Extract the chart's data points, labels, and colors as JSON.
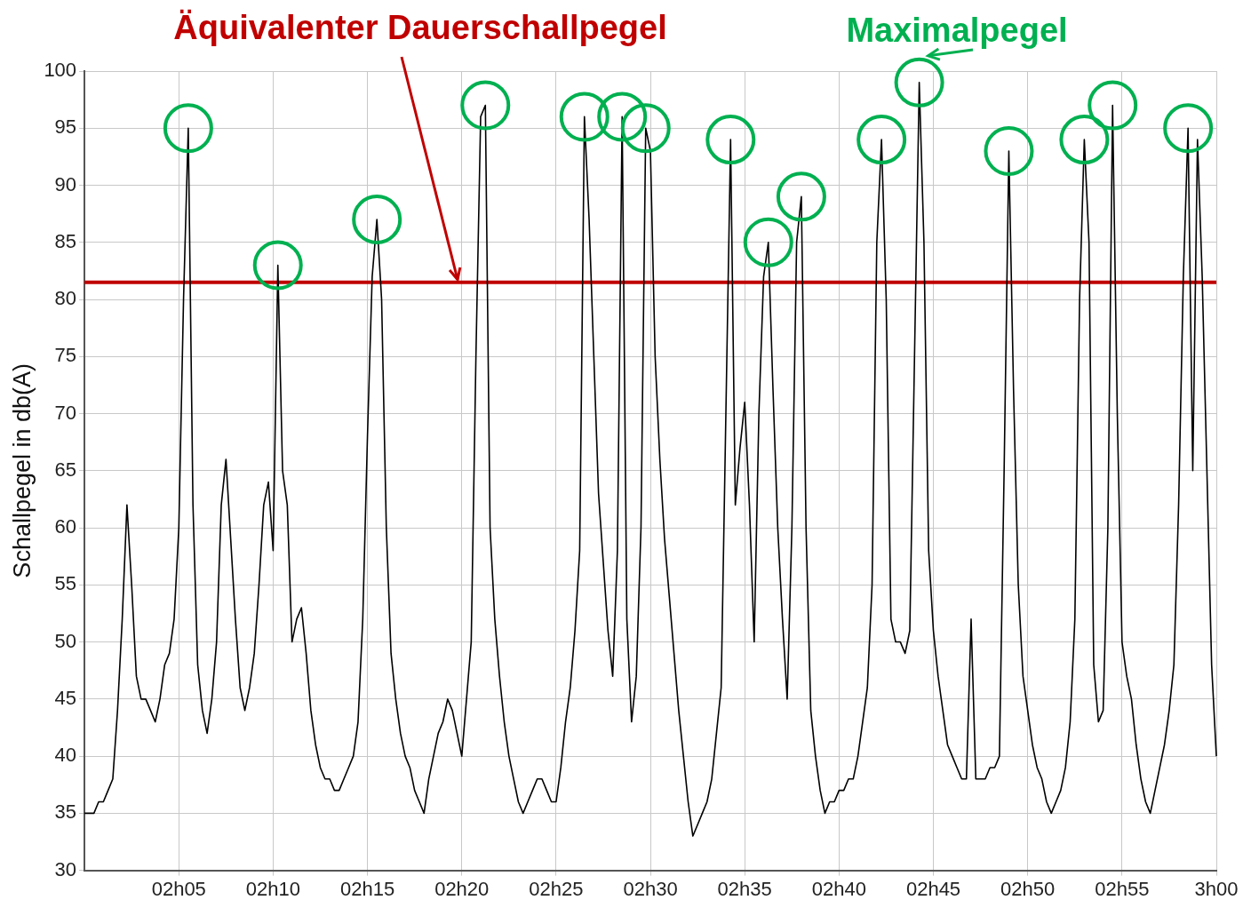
{
  "chart_data": {
    "type": "line",
    "ylabel": "Schallpegel in db(A)",
    "ylim": [
      30,
      100
    ],
    "categories": [
      null,
      null,
      null,
      null,
      null,
      null,
      null,
      null,
      null,
      null,
      null,
      null,
      null,
      null,
      null,
      null,
      null,
      null,
      null,
      null,
      "02h05",
      null,
      null,
      null,
      null,
      null,
      null,
      null,
      null,
      null,
      null,
      null,
      null,
      null,
      null,
      null,
      null,
      null,
      null,
      null,
      "02h10",
      null,
      null,
      null,
      null,
      null,
      null,
      null,
      null,
      null,
      null,
      null,
      null,
      null,
      null,
      null,
      null,
      null,
      null,
      null,
      "02h15",
      null,
      null,
      null,
      null,
      null,
      null,
      null,
      null,
      null,
      null,
      null,
      null,
      null,
      null,
      null,
      null,
      null,
      null,
      null,
      "02h20",
      null,
      null,
      null,
      null,
      null,
      null,
      null,
      null,
      null,
      null,
      null,
      null,
      null,
      null,
      null,
      null,
      null,
      null,
      null,
      "02h25",
      null,
      null,
      null,
      null,
      null,
      null,
      null,
      null,
      null,
      null,
      null,
      null,
      null,
      null,
      null,
      null,
      null,
      null,
      null,
      "02h30",
      null,
      null,
      null,
      null,
      null,
      null,
      null,
      null,
      null,
      null,
      null,
      null,
      null,
      null,
      null,
      null,
      null,
      null,
      null,
      "02h35",
      null,
      null,
      null,
      null,
      null,
      null,
      null,
      null,
      null,
      null,
      null,
      null,
      null,
      null,
      null,
      null,
      null,
      null,
      null,
      "02h40",
      null,
      null,
      null,
      null,
      null,
      null,
      null,
      null,
      null,
      null,
      null,
      null,
      null,
      null,
      null,
      null,
      null,
      null,
      null,
      "02h45",
      null,
      null,
      null,
      null,
      null,
      null,
      null,
      null,
      null,
      null,
      null,
      null,
      null,
      null,
      null,
      null,
      null,
      null,
      null,
      "02h50",
      null,
      null,
      null,
      null,
      null,
      null,
      null,
      null,
      null,
      null,
      null,
      null,
      null,
      null,
      null,
      null,
      null,
      null,
      null,
      "02h55",
      null,
      null,
      null,
      null,
      null,
      null,
      null,
      null,
      null,
      null,
      null,
      null,
      null,
      null,
      null,
      null,
      null,
      null,
      null,
      "3h00"
    ],
    "yticks": [
      30,
      35,
      40,
      45,
      50,
      55,
      60,
      65,
      70,
      75,
      80,
      85,
      90,
      95,
      100
    ],
    "grid": true,
    "legend": false,
    "marker": "none",
    "line_style": "solid",
    "ref_lines": [
      {
        "axis": "y",
        "value": 81.5,
        "label": "Äquivalenter Dauerschallpegel",
        "color": "#c00000"
      }
    ],
    "series": [
      {
        "color": "#000000",
        "values": [
          35,
          35,
          35,
          36,
          36,
          37,
          38,
          44,
          52,
          62,
          55,
          47,
          45,
          45,
          44,
          43,
          45,
          48,
          49,
          52,
          60,
          80,
          95,
          62,
          48,
          44,
          42,
          45,
          50,
          62,
          66,
          59,
          52,
          46,
          44,
          46,
          49,
          55,
          62,
          64,
          58,
          83,
          65,
          62,
          50,
          52,
          53,
          49,
          44,
          41,
          39,
          38,
          38,
          37,
          37,
          38,
          39,
          40,
          43,
          52,
          68,
          82,
          87,
          80,
          60,
          49,
          45,
          42,
          40,
          39,
          37,
          36,
          35,
          38,
          40,
          42,
          43,
          45,
          44,
          42,
          40,
          45,
          50,
          75,
          96,
          97,
          60,
          52,
          47,
          43,
          40,
          38,
          36,
          35,
          36,
          37,
          38,
          38,
          37,
          36,
          36,
          39,
          43,
          46,
          51,
          58,
          96,
          87,
          75,
          63,
          57,
          51,
          47,
          58,
          96,
          52,
          43,
          47,
          60,
          95,
          93,
          75,
          66,
          59,
          54,
          49,
          44,
          40,
          36,
          33,
          34,
          35,
          36,
          38,
          42,
          46,
          70,
          94,
          62,
          67,
          71,
          62,
          50,
          70,
          82,
          85,
          72,
          60,
          52,
          45,
          60,
          85,
          89,
          60,
          44,
          40,
          37,
          35,
          36,
          36,
          37,
          37,
          38,
          38,
          40,
          43,
          46,
          55,
          85,
          94,
          80,
          52,
          50,
          50,
          49,
          51,
          75,
          99,
          85,
          58,
          51,
          47,
          44,
          41,
          40,
          39,
          38,
          38,
          52,
          38,
          38,
          38,
          39,
          39,
          40,
          65,
          93,
          72,
          55,
          47,
          44,
          41,
          39,
          38,
          36,
          35,
          36,
          37,
          39,
          43,
          52,
          80,
          94,
          85,
          48,
          43,
          44,
          60,
          97,
          70,
          50,
          47,
          45,
          41,
          38,
          36,
          35,
          37,
          39,
          41,
          44,
          48,
          62,
          82,
          95,
          65,
          94,
          82,
          65,
          48,
          40
        ]
      },
      {
        "name": "Maximalpegel",
        "type": "scatter",
        "marker": "circle",
        "color": "#00b050",
        "values": [
          null,
          null,
          null,
          null,
          null,
          null,
          null,
          null,
          null,
          null,
          null,
          null,
          null,
          null,
          null,
          null,
          null,
          null,
          null,
          null,
          null,
          null,
          95,
          null,
          null,
          null,
          null,
          null,
          null,
          null,
          null,
          null,
          null,
          null,
          null,
          null,
          null,
          null,
          null,
          null,
          null,
          83,
          null,
          null,
          null,
          null,
          null,
          null,
          null,
          null,
          null,
          null,
          null,
          null,
          null,
          null,
          null,
          null,
          null,
          null,
          null,
          null,
          87,
          null,
          null,
          null,
          null,
          null,
          null,
          null,
          null,
          null,
          null,
          null,
          null,
          null,
          null,
          null,
          null,
          null,
          null,
          null,
          null,
          null,
          null,
          97,
          null,
          null,
          null,
          null,
          null,
          null,
          null,
          null,
          null,
          null,
          null,
          null,
          null,
          null,
          null,
          null,
          null,
          null,
          null,
          null,
          96,
          null,
          null,
          null,
          null,
          null,
          null,
          null,
          96,
          null,
          null,
          null,
          null,
          95,
          null,
          null,
          null,
          null,
          null,
          null,
          null,
          null,
          null,
          null,
          null,
          null,
          null,
          null,
          null,
          null,
          null,
          94,
          null,
          null,
          null,
          null,
          null,
          null,
          null,
          85,
          null,
          null,
          null,
          null,
          null,
          null,
          89,
          null,
          null,
          null,
          null,
          null,
          null,
          null,
          null,
          null,
          null,
          null,
          null,
          null,
          null,
          null,
          null,
          94,
          null,
          null,
          null,
          null,
          null,
          null,
          null,
          99,
          null,
          null,
          null,
          null,
          null,
          null,
          null,
          null,
          null,
          null,
          null,
          null,
          null,
          null,
          null,
          null,
          null,
          null,
          93,
          null,
          null,
          null,
          null,
          null,
          null,
          null,
          null,
          null,
          null,
          null,
          null,
          null,
          null,
          null,
          94,
          null,
          null,
          null,
          null,
          null,
          97,
          null,
          null,
          null,
          null,
          null,
          null,
          null,
          null,
          null,
          null,
          null,
          null,
          null,
          null,
          null,
          95,
          null,
          null,
          null,
          null,
          null,
          null
        ]
      }
    ]
  }
}
